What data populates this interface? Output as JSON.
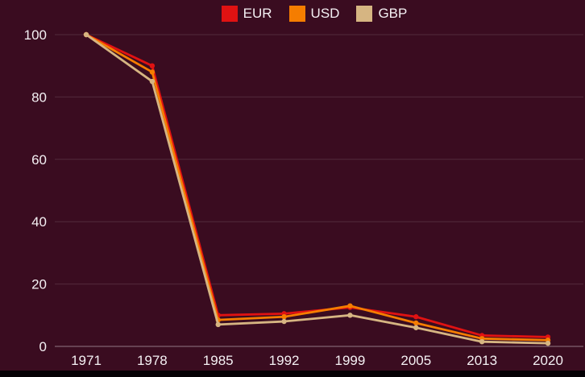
{
  "window": {
    "background_color": "#3a0c20",
    "bottom_bar_color": "#050105"
  },
  "chart_data": {
    "type": "line",
    "title": "",
    "categories": [
      "1971",
      "1978",
      "1985",
      "1992",
      "1999",
      "2005",
      "2013",
      "2020"
    ],
    "series": [
      {
        "name": "EUR",
        "color": "#e01212",
        "values": [
          100,
          90,
          10,
          10.5,
          12.5,
          9.5,
          3.5,
          3
        ]
      },
      {
        "name": "USD",
        "color": "#f57d00",
        "values": [
          100,
          88,
          8.5,
          9.5,
          13,
          7.5,
          2.5,
          2
        ]
      },
      {
        "name": "GBP",
        "color": "#d6b582",
        "values": [
          100,
          85,
          7,
          8,
          10,
          6,
          1.5,
          1
        ]
      }
    ],
    "xlabel": "",
    "ylabel": "",
    "ylim": [
      0,
      100
    ],
    "y_ticks": [
      0,
      20,
      40,
      60,
      80,
      100
    ],
    "grid": "horizontal",
    "legend_position": "top-center",
    "text_color": "#f4f0f3",
    "grid_color": "rgba(255,255,255,0.13)",
    "axis_line_color": "rgba(255,255,255,0.45)"
  }
}
